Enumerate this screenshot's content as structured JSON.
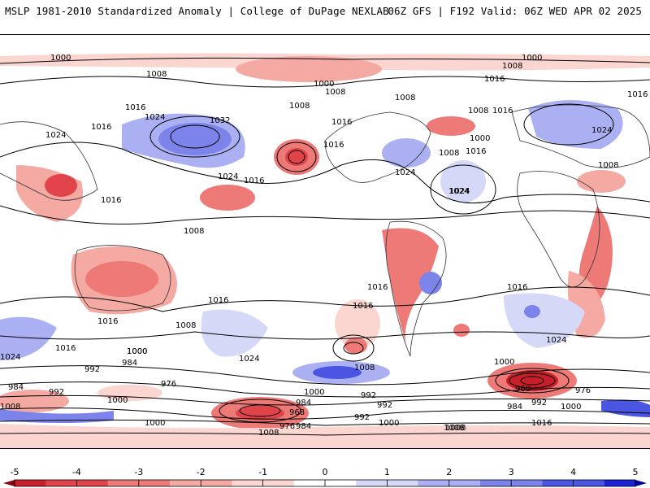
{
  "header": {
    "title_left": "MSLP 1981-2010 Standardized Anomaly | College of DuPage NEXLAB",
    "title_right": "06Z GFS | F192 Valid: 06Z WED APR 02 2025"
  },
  "map": {
    "projection": "global cylindrical",
    "fill_variable": "standardized MSLP anomaly",
    "contour_variable": "MSLP (hPa)",
    "isobar_labels": [
      "1000",
      "1008",
      "1000",
      "1008",
      "1016",
      "1024",
      "1016",
      "1024",
      "1032",
      "1016",
      "1024",
      "1016",
      "1008",
      "1016",
      "1008",
      "1016",
      "1024",
      "1008",
      "1000",
      "1008",
      "1016",
      "1008",
      "1016",
      "1024",
      "1008",
      "1000",
      "1016",
      "1024",
      "1016",
      "1008",
      "1016",
      "1016",
      "1024",
      "1024",
      "1016",
      "1000",
      "1008",
      "1008",
      "1016",
      "1016",
      "1024",
      "1016",
      "984",
      "1000",
      "992",
      "1000",
      "992",
      "984",
      "976",
      "1000",
      "1008",
      "1000",
      "992",
      "968",
      "976",
      "984",
      "1008",
      "984",
      "992",
      "992",
      "1000",
      "1008",
      "960",
      "984",
      "992",
      "976",
      "1000",
      "1016",
      "1008",
      "1000",
      "1024"
    ]
  },
  "colorbar": {
    "ticks": [
      "-5",
      "-4",
      "-3",
      "-2",
      "-1",
      "0",
      "1",
      "2",
      "3",
      "4",
      "5"
    ],
    "colors": [
      "#c8202a",
      "#e0444a",
      "#ee7a78",
      "#f5a9a3",
      "#fbd6d1",
      "#ffffff",
      "#d6d8f8",
      "#aab0f2",
      "#7c84ea",
      "#4a55e2",
      "#1c22d6"
    ]
  }
}
